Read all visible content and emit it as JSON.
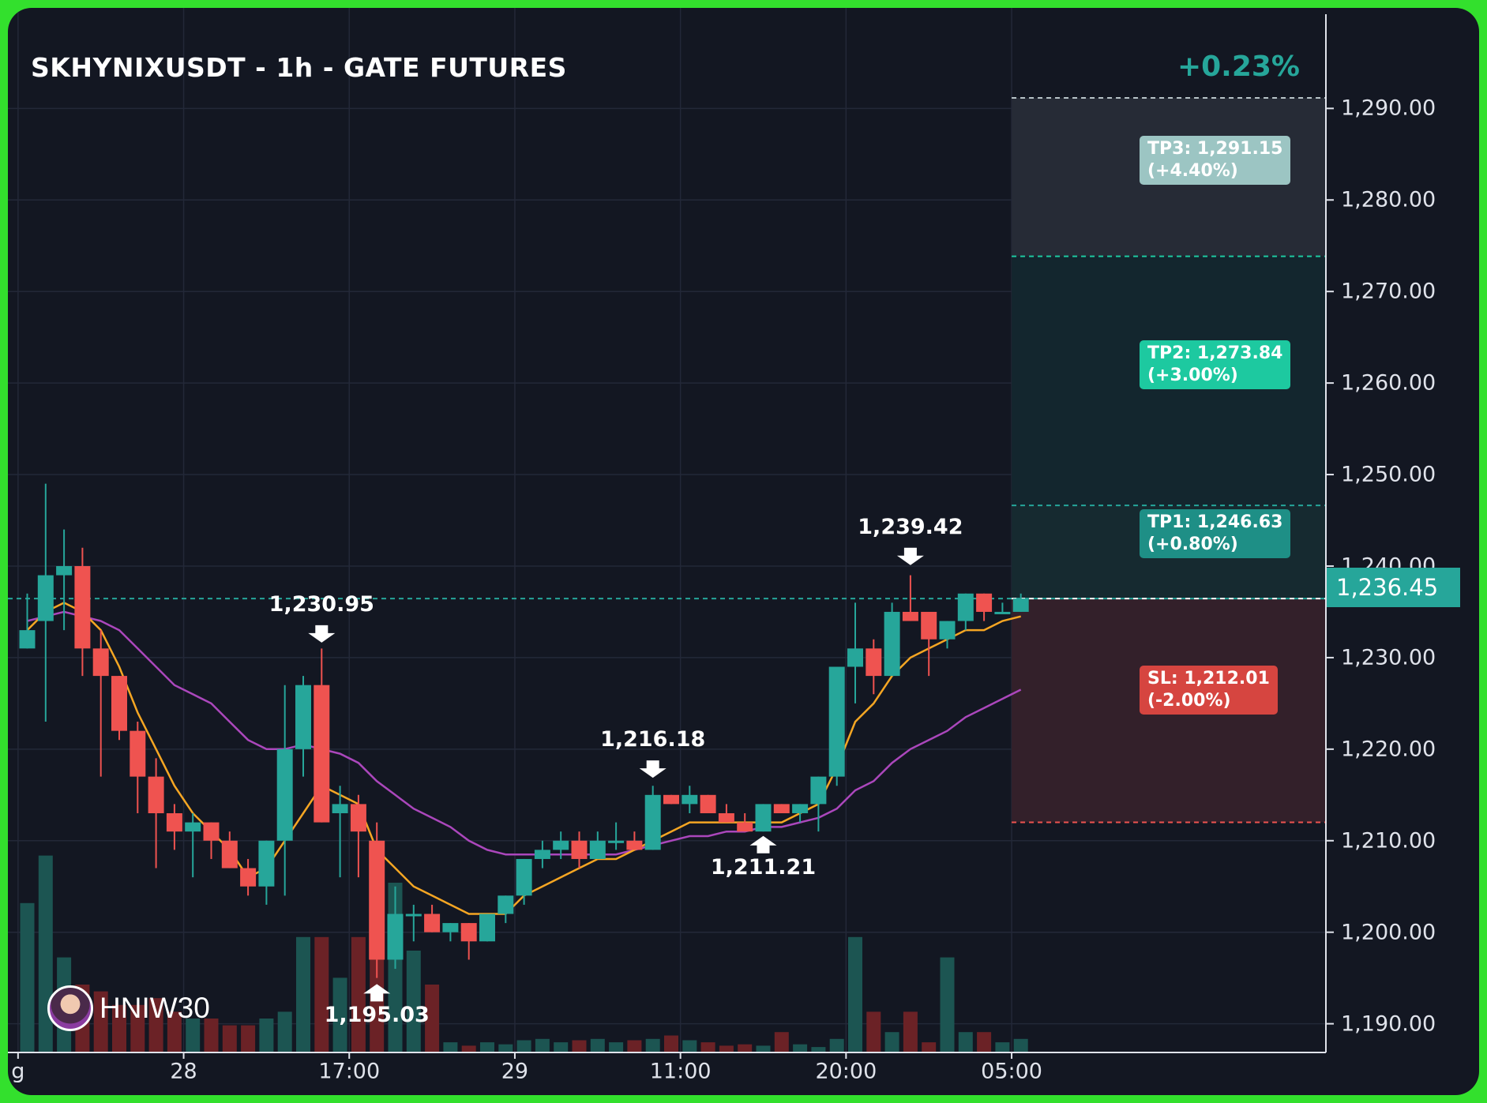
{
  "header": {
    "title": "SKHYNIXUSDT - 1h - GATE FUTURES",
    "change": "+0.23%"
  },
  "targets": {
    "tp3": "TP3: 1,291.15\n(+4.40%)",
    "tp2": "TP2: 1,273.84\n(+3.00%)",
    "tp1": "TP1: 1,246.63\n(+0.80%)",
    "sl": "SL: 1,212.01\n(-2.00%)"
  },
  "current_price": "1,236.45",
  "brand": {
    "name": "HNIW30"
  },
  "colors": {
    "up": "#26a69a",
    "down": "#ef5350",
    "ema_fast": "#f5a623",
    "ema_slow": "#ab47bc",
    "tp3": "#9cc5c3",
    "tp2": "#1dc9a0",
    "tp1": "#1e8f86",
    "sl": "#d64540"
  },
  "chart_data": {
    "type": "candlestick",
    "title": "SKHYNIXUSDT - 1h - GATE FUTURES",
    "timeframe": "1h",
    "ylim": [
      1186,
      1299
    ],
    "y_ticks": [
      "1,190.00",
      "1,200.00",
      "1,210.00",
      "1,220.00",
      "1,230.00",
      "1,240.00",
      "1,250.00",
      "1,260.00",
      "1,270.00",
      "1,280.00",
      "1,290.00"
    ],
    "y_tick_values": [
      1190,
      1200,
      1210,
      1220,
      1230,
      1240,
      1250,
      1260,
      1270,
      1280,
      1290
    ],
    "x_ticks": [
      {
        "label": "g",
        "index": -0.5
      },
      {
        "label": "28",
        "index": 8.5
      },
      {
        "label": "17:00",
        "index": 17.5
      },
      {
        "label": "29",
        "index": 26.5
      },
      {
        "label": "11:00",
        "index": 35.5
      },
      {
        "label": "20:00",
        "index": 44.5
      },
      {
        "label": "05:00",
        "index": 53.5
      }
    ],
    "candles": [
      {
        "o": 1231,
        "h": 1237,
        "l": 1231,
        "c": 1233
      },
      {
        "o": 1234,
        "h": 1249,
        "l": 1223,
        "c": 1239
      },
      {
        "o": 1239,
        "h": 1244,
        "l": 1233,
        "c": 1240
      },
      {
        "o": 1240,
        "h": 1242,
        "l": 1228,
        "c": 1231
      },
      {
        "o": 1231,
        "h": 1233,
        "l": 1217,
        "c": 1228
      },
      {
        "o": 1228,
        "h": 1228,
        "l": 1221,
        "c": 1222
      },
      {
        "o": 1222,
        "h": 1223,
        "l": 1213,
        "c": 1217
      },
      {
        "o": 1217,
        "h": 1219,
        "l": 1207,
        "c": 1213
      },
      {
        "o": 1213,
        "h": 1214,
        "l": 1209,
        "c": 1211
      },
      {
        "o": 1211,
        "h": 1213,
        "l": 1206,
        "c": 1212
      },
      {
        "o": 1212,
        "h": 1212,
        "l": 1208,
        "c": 1210
      },
      {
        "o": 1210,
        "h": 1211,
        "l": 1207,
        "c": 1207
      },
      {
        "o": 1207,
        "h": 1208,
        "l": 1204,
        "c": 1205
      },
      {
        "o": 1205,
        "h": 1210,
        "l": 1203,
        "c": 1210
      },
      {
        "o": 1210,
        "h": 1227,
        "l": 1204,
        "c": 1220
      },
      {
        "o": 1220,
        "h": 1228,
        "l": 1217,
        "c": 1227
      },
      {
        "o": 1227,
        "h": 1231,
        "l": 1212,
        "c": 1212
      },
      {
        "o": 1213,
        "h": 1216,
        "l": 1206,
        "c": 1214
      },
      {
        "o": 1214,
        "h": 1215,
        "l": 1206,
        "c": 1211
      },
      {
        "o": 1210,
        "h": 1212,
        "l": 1195,
        "c": 1197
      },
      {
        "o": 1197,
        "h": 1205,
        "l": 1196,
        "c": 1202
      },
      {
        "o": 1202,
        "h": 1203,
        "l": 1199,
        "c": 1202
      },
      {
        "o": 1202,
        "h": 1203,
        "l": 1200,
        "c": 1200
      },
      {
        "o": 1200,
        "h": 1201,
        "l": 1199,
        "c": 1201
      },
      {
        "o": 1201,
        "h": 1201,
        "l": 1197,
        "c": 1199
      },
      {
        "o": 1199,
        "h": 1202,
        "l": 1199,
        "c": 1202
      },
      {
        "o": 1202,
        "h": 1204,
        "l": 1201,
        "c": 1204
      },
      {
        "o": 1204,
        "h": 1208,
        "l": 1203,
        "c": 1208
      },
      {
        "o": 1208,
        "h": 1210,
        "l": 1207,
        "c": 1209
      },
      {
        "o": 1209,
        "h": 1211,
        "l": 1208,
        "c": 1210
      },
      {
        "o": 1210,
        "h": 1211,
        "l": 1207,
        "c": 1208
      },
      {
        "o": 1208,
        "h": 1211,
        "l": 1208,
        "c": 1210
      },
      {
        "o": 1210,
        "h": 1212,
        "l": 1209,
        "c": 1210
      },
      {
        "o": 1210,
        "h": 1211,
        "l": 1209,
        "c": 1209
      },
      {
        "o": 1209,
        "h": 1216,
        "l": 1209,
        "c": 1215
      },
      {
        "o": 1215,
        "h": 1215,
        "l": 1214,
        "c": 1214
      },
      {
        "o": 1214,
        "h": 1216,
        "l": 1213,
        "c": 1215
      },
      {
        "o": 1215,
        "h": 1215,
        "l": 1213,
        "c": 1213
      },
      {
        "o": 1213,
        "h": 1214,
        "l": 1212,
        "c": 1212
      },
      {
        "o": 1212,
        "h": 1213,
        "l": 1211,
        "c": 1211
      },
      {
        "o": 1211,
        "h": 1214,
        "l": 1211,
        "c": 1214
      },
      {
        "o": 1214,
        "h": 1214,
        "l": 1213,
        "c": 1213
      },
      {
        "o": 1213,
        "h": 1214,
        "l": 1212,
        "c": 1214
      },
      {
        "o": 1214,
        "h": 1217,
        "l": 1211,
        "c": 1217
      },
      {
        "o": 1217,
        "h": 1229,
        "l": 1216,
        "c": 1229
      },
      {
        "o": 1229,
        "h": 1236,
        "l": 1225,
        "c": 1231
      },
      {
        "o": 1231,
        "h": 1232,
        "l": 1226,
        "c": 1228
      },
      {
        "o": 1228,
        "h": 1236,
        "l": 1228,
        "c": 1235
      },
      {
        "o": 1235,
        "h": 1239,
        "l": 1234,
        "c": 1234
      },
      {
        "o": 1235,
        "h": 1235,
        "l": 1228,
        "c": 1232
      },
      {
        "o": 1232,
        "h": 1234,
        "l": 1231,
        "c": 1234
      },
      {
        "o": 1234,
        "h": 1237,
        "l": 1233,
        "c": 1237
      },
      {
        "o": 1237,
        "h": 1237,
        "l": 1234,
        "c": 1235
      },
      {
        "o": 1235,
        "h": 1236,
        "l": 1235,
        "c": 1235
      },
      {
        "o": 1235,
        "h": 1237,
        "l": 1235,
        "c": 1236.45
      }
    ],
    "volume": [
      220,
      290,
      140,
      100,
      90,
      70,
      70,
      80,
      60,
      50,
      50,
      40,
      40,
      50,
      60,
      170,
      170,
      110,
      170,
      170,
      250,
      150,
      100,
      15,
      10,
      15,
      12,
      18,
      20,
      15,
      18,
      20,
      15,
      18,
      20,
      25,
      18,
      15,
      10,
      12,
      10,
      30,
      12,
      8,
      20,
      170,
      60,
      30,
      60,
      15,
      140,
      30,
      30,
      15,
      20
    ],
    "ema_fast": [
      1233,
      1235,
      1236,
      1235,
      1233,
      1229,
      1224,
      1220,
      1216,
      1213,
      1211,
      1209,
      1206,
      1207,
      1210,
      1213,
      1216,
      1215,
      1214,
      1209,
      1207,
      1205,
      1204,
      1203,
      1202,
      1202,
      1202,
      1204,
      1205,
      1206,
      1207,
      1208,
      1208,
      1209,
      1210,
      1211,
      1212,
      1212,
      1212,
      1212,
      1212,
      1212,
      1213,
      1214,
      1218,
      1223,
      1225,
      1228,
      1230,
      1231,
      1232,
      1233,
      1233,
      1234,
      1234.5
    ],
    "ema_slow": [
      1234,
      1234.5,
      1235,
      1234.5,
      1234,
      1233,
      1231,
      1229,
      1227,
      1226,
      1225,
      1223,
      1221,
      1220,
      1220,
      1220.5,
      1220,
      1219.5,
      1218.5,
      1216.5,
      1215,
      1213.5,
      1212.5,
      1211.5,
      1210,
      1209,
      1208.5,
      1208.5,
      1208.5,
      1208.5,
      1208.5,
      1208.5,
      1208.5,
      1209,
      1209.5,
      1210,
      1210.5,
      1210.5,
      1211,
      1211,
      1211.5,
      1211.5,
      1212,
      1212.5,
      1213.5,
      1215.5,
      1216.5,
      1218.5,
      1220,
      1221,
      1222,
      1223.5,
      1224.5,
      1225.5,
      1226.5
    ],
    "annotations": [
      {
        "text": "1,230.95",
        "index": 16,
        "price": 1230.95,
        "dir": "down"
      },
      {
        "text": "1,195.03",
        "index": 19,
        "price": 1195.03,
        "dir": "up"
      },
      {
        "text": "1,216.18",
        "index": 34,
        "price": 1216.18,
        "dir": "down"
      },
      {
        "text": "1,211.21",
        "index": 40,
        "price": 1211.21,
        "dir": "up"
      },
      {
        "text": "1,239.42",
        "index": 48,
        "price": 1239.42,
        "dir": "down"
      }
    ],
    "levels": {
      "tp3": 1291.15,
      "tp2": 1273.84,
      "tp1": 1246.63,
      "entry": 1236.45,
      "sl": 1212.01
    }
  }
}
